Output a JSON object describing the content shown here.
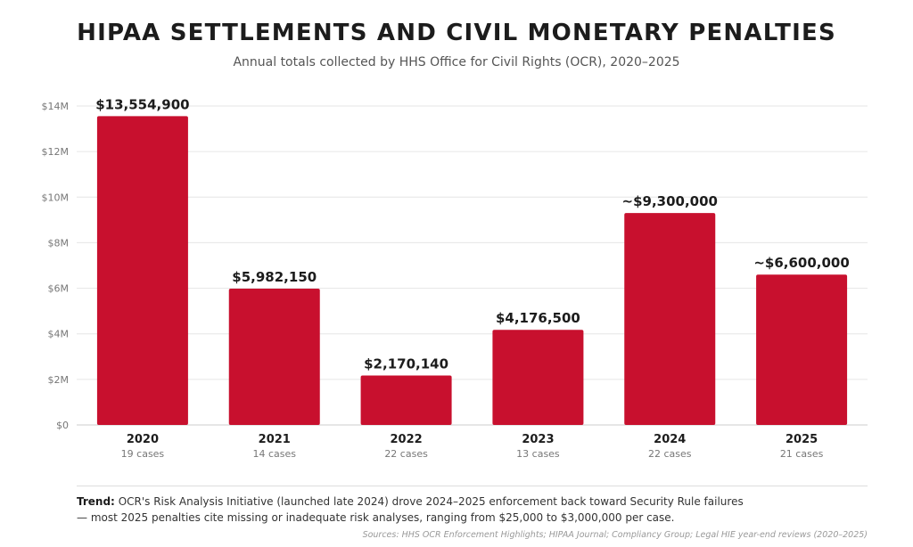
{
  "chart_data": {
    "type": "bar",
    "title": "HIPAA SETTLEMENTS AND CIVIL MONETARY PENALTIES",
    "subtitle": "Annual totals collected by HHS Office for Civil Rights (OCR), 2020–2025",
    "categories": [
      "2020",
      "2021",
      "2022",
      "2023",
      "2024",
      "2025"
    ],
    "sublabels": [
      "19 cases",
      "14 cases",
      "22 cases",
      "13 cases",
      "22 cases",
      "21 cases"
    ],
    "values": [
      13554900,
      5982150,
      2170140,
      4176500,
      9300000,
      6600000
    ],
    "data_labels": [
      "$13,554,900",
      "$5,982,150",
      "$2,170,140",
      "$4,176,500",
      "~$9,300,000",
      "~$6,600,000"
    ],
    "ylim": [
      0,
      14000000
    ],
    "yticks": [
      0,
      2000000,
      4000000,
      6000000,
      8000000,
      10000000,
      12000000,
      14000000
    ],
    "ytick_labels": [
      "$0",
      "$2M",
      "$4M",
      "$6M",
      "$8M",
      "$10M",
      "$12M",
      "$14M"
    ],
    "grid": true,
    "bar_color": "#c8102e"
  },
  "note": {
    "label": "Trend:",
    "text": "OCR's Risk Analysis Initiative (launched late 2024) drove 2024–2025 enforcement back toward Security Rule failures — most 2025 penalties cite missing or inadequate risk analyses, ranging from $25,000 to $3,000,000 per case."
  },
  "sources": "Sources: HHS OCR Enforcement Highlights; HIPAA Journal; Compliancy Group; Legal HIE year-end reviews (2020–2025)"
}
